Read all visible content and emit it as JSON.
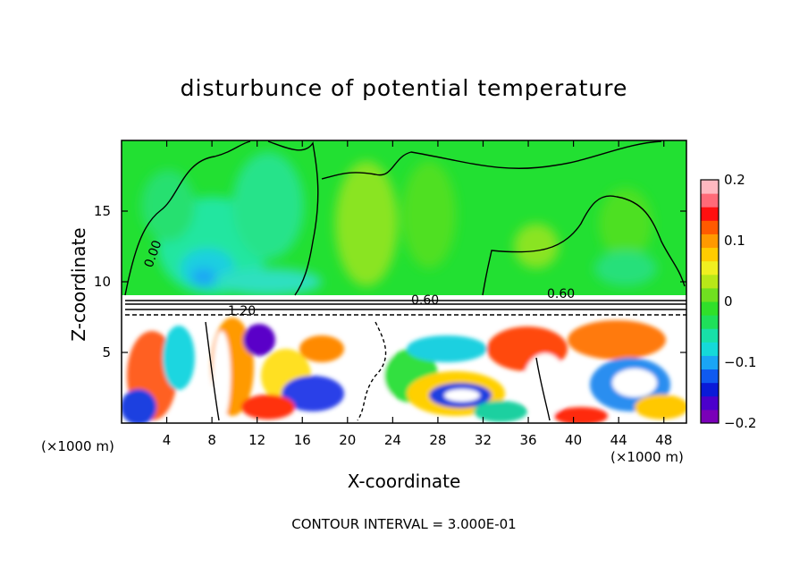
{
  "chart_data": {
    "type": "heatmap",
    "title": "disturbunce of potential temperature",
    "xlabel": "X-coordinate",
    "ylabel": "Z-coordinate",
    "x_unit_label": "(×1000 m)",
    "x_ticks": [
      4,
      8,
      12,
      16,
      20,
      24,
      28,
      32,
      36,
      40,
      44,
      48
    ],
    "y_ticks": [
      5,
      10,
      15
    ],
    "xlim": [
      0,
      50
    ],
    "ylim": [
      0,
      20
    ],
    "colorbar": {
      "min": -0.2,
      "max": 0.2,
      "tick_labels": [
        "0.2",
        "0.1",
        "0",
        "−0.1",
        "−0.2"
      ],
      "tick_values": [
        0.2,
        0.1,
        0,
        -0.1,
        -0.2
      ],
      "colors": [
        "#7a00b8",
        "#4b00cc",
        "#0a1ad8",
        "#0f5af0",
        "#1aa5f5",
        "#15d9d9",
        "#18e0a8",
        "#1fe05a",
        "#30e02a",
        "#70e020",
        "#b8e818",
        "#f0f020",
        "#ffcc00",
        "#ff9900",
        "#ff5a00",
        "#ff1010",
        "#ff6a78",
        "#ffb8c0"
      ]
    },
    "contour_labels": [
      "0.00",
      "0.60",
      "1.20",
      "0.60"
    ],
    "contour_interval_text": "CONTOUR INTERVAL = 3.000E-01"
  }
}
